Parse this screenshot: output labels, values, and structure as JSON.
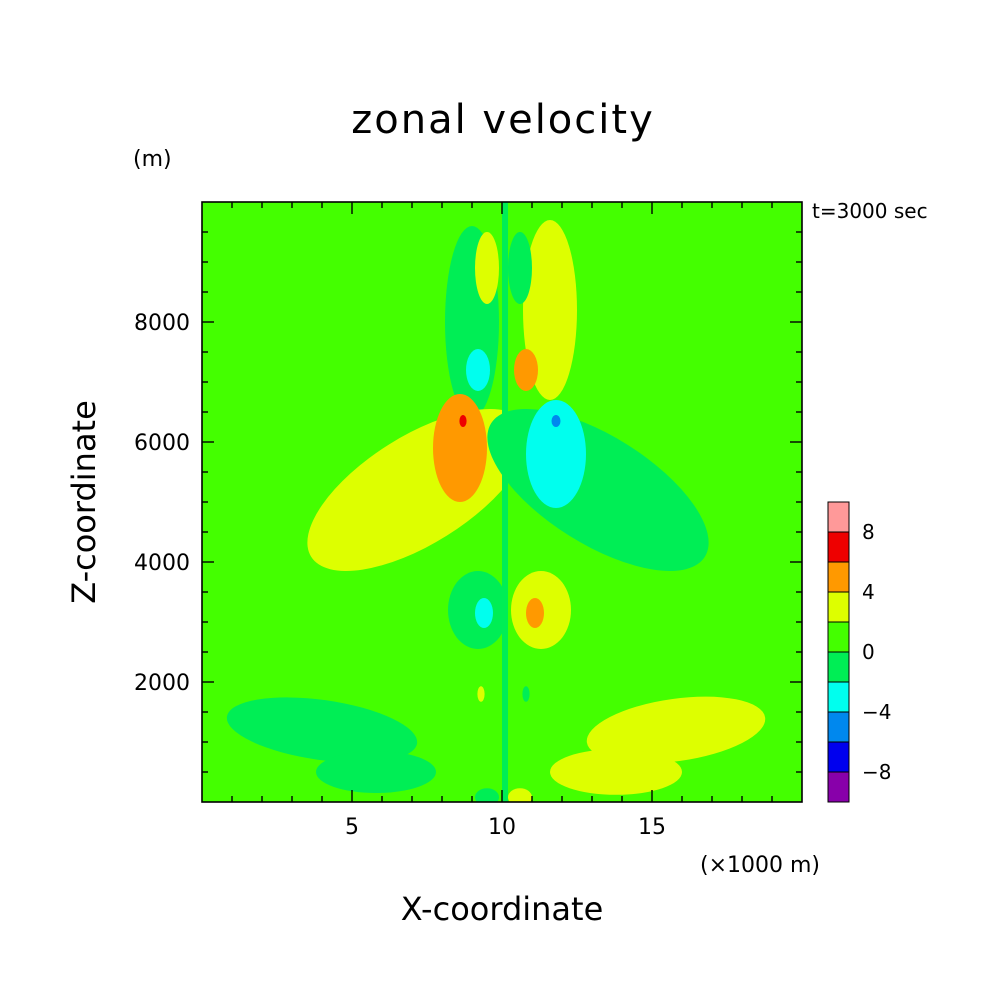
{
  "colors": {
    "background": "#ffffff",
    "frame": "#000000",
    "field_base": "#44ff00",
    "center_strip": "#00ee55"
  },
  "chart_data": {
    "type": "heatmap",
    "title": "zonal velocity",
    "xlabel": "X-coordinate",
    "ylabel": "Z-coordinate",
    "x_unit": "(×1000 m)",
    "y_unit": "(m)",
    "time_label": "t=3000 sec",
    "xlim": [
      0,
      20
    ],
    "ylim": [
      0,
      10000
    ],
    "x_ticks": [
      5,
      10,
      15
    ],
    "x_tick_labels": [
      "5",
      "10",
      "15"
    ],
    "y_ticks": [
      2000,
      4000,
      6000,
      8000
    ],
    "y_tick_labels": [
      "2000",
      "4000",
      "6000",
      "8000"
    ],
    "grid": false,
    "colorbar": {
      "placement": "right",
      "levels": [
        -10,
        -8,
        -6,
        -4,
        -2,
        0,
        2,
        4,
        6,
        8,
        10
      ],
      "colors": [
        "#8800aa",
        "#0000ee",
        "#0088ee",
        "#00ffee",
        "#00ee55",
        "#44ff00",
        "#ddff00",
        "#ff9900",
        "#ee0000",
        "#ff9999"
      ],
      "tick_values": [
        -8,
        -4,
        0,
        4,
        8
      ],
      "tick_labels": [
        "−8",
        "−4",
        "0",
        "4",
        "8"
      ]
    },
    "features": [
      {
        "name": "upper-left-cyan-lobe",
        "value": -2,
        "x": 9.0,
        "z": 8000,
        "rx": 0.9,
        "rz": 1600,
        "rot": 0
      },
      {
        "name": "upper-right-yellow-lobe",
        "value": 2,
        "x": 11.6,
        "z": 8200,
        "rx": 0.9,
        "rz": 1500,
        "rot": 0
      },
      {
        "name": "top-center-yellow",
        "value": 2,
        "x": 9.5,
        "z": 8900,
        "rx": 0.4,
        "rz": 600,
        "rot": 0
      },
      {
        "name": "top-center-cyan",
        "value": -2,
        "x": 10.6,
        "z": 8900,
        "rx": 0.4,
        "rz": 600,
        "rot": 0
      },
      {
        "name": "mid-left-blue",
        "value": -4,
        "x": 9.2,
        "z": 7200,
        "rx": 0.4,
        "rz": 350,
        "rot": 0
      },
      {
        "name": "mid-right-orange",
        "value": 4,
        "x": 10.8,
        "z": 7200,
        "rx": 0.4,
        "rz": 350,
        "rot": 0
      },
      {
        "name": "left-yellow-arm",
        "value": 2,
        "x": 7.2,
        "z": 5200,
        "rx": 4.2,
        "rz": 900,
        "rot": -32
      },
      {
        "name": "right-cyan-arm",
        "value": -2,
        "x": 13.2,
        "z": 5200,
        "rx": 4.2,
        "rz": 900,
        "rot": 32
      },
      {
        "name": "left-orange-core",
        "value": 4,
        "x": 8.6,
        "z": 5900,
        "rx": 0.9,
        "rz": 900,
        "rot": 0
      },
      {
        "name": "right-blue-core",
        "value": -4,
        "x": 11.8,
        "z": 5800,
        "rx": 1.0,
        "rz": 900,
        "rot": 0
      },
      {
        "name": "left-red-spot",
        "value": 6,
        "x": 8.7,
        "z": 6350,
        "rx": 0.12,
        "rz": 100,
        "rot": 0
      },
      {
        "name": "right-darkblue-spot",
        "value": -6,
        "x": 11.8,
        "z": 6350,
        "rx": 0.15,
        "rz": 100,
        "rot": 0
      },
      {
        "name": "lower-left-cyan",
        "value": -2,
        "x": 9.2,
        "z": 3200,
        "rx": 1.0,
        "rz": 650,
        "rot": 0
      },
      {
        "name": "lower-left-blue",
        "value": -4,
        "x": 9.4,
        "z": 3150,
        "rx": 0.3,
        "rz": 250,
        "rot": 0
      },
      {
        "name": "lower-right-yellow",
        "value": 2,
        "x": 11.3,
        "z": 3200,
        "rx": 1.0,
        "rz": 650,
        "rot": 0
      },
      {
        "name": "lower-right-orange",
        "value": 4,
        "x": 11.1,
        "z": 3150,
        "rx": 0.3,
        "rz": 250,
        "rot": 0
      },
      {
        "name": "bottom-left-cyan",
        "value": -2,
        "x": 4.0,
        "z": 1200,
        "rx": 3.2,
        "rz": 500,
        "rot": 8
      },
      {
        "name": "bottom-left-cyan-tail",
        "value": -2,
        "x": 5.8,
        "z": 500,
        "rx": 2.0,
        "rz": 350,
        "rot": 0
      },
      {
        "name": "bottom-right-yellow",
        "value": 2,
        "x": 15.8,
        "z": 1200,
        "rx": 3.0,
        "rz": 520,
        "rot": -8
      },
      {
        "name": "bottom-right-yellow-tail",
        "value": 2,
        "x": 13.8,
        "z": 500,
        "rx": 2.2,
        "rz": 380,
        "rot": 0
      },
      {
        "name": "small-yellow-dot",
        "value": 2,
        "x": 9.3,
        "z": 1800,
        "rx": 0.12,
        "rz": 130,
        "rot": 0
      },
      {
        "name": "small-cyan-dot",
        "value": -2,
        "x": 10.8,
        "z": 1800,
        "rx": 0.12,
        "rz": 130,
        "rot": 0
      },
      {
        "name": "bottom-center-cyan",
        "value": -2,
        "x": 9.5,
        "z": 80,
        "rx": 0.4,
        "rz": 150,
        "rot": 0
      },
      {
        "name": "bottom-center-yellow",
        "value": 2,
        "x": 10.6,
        "z": 80,
        "rx": 0.4,
        "rz": 150,
        "rot": 0
      }
    ]
  }
}
